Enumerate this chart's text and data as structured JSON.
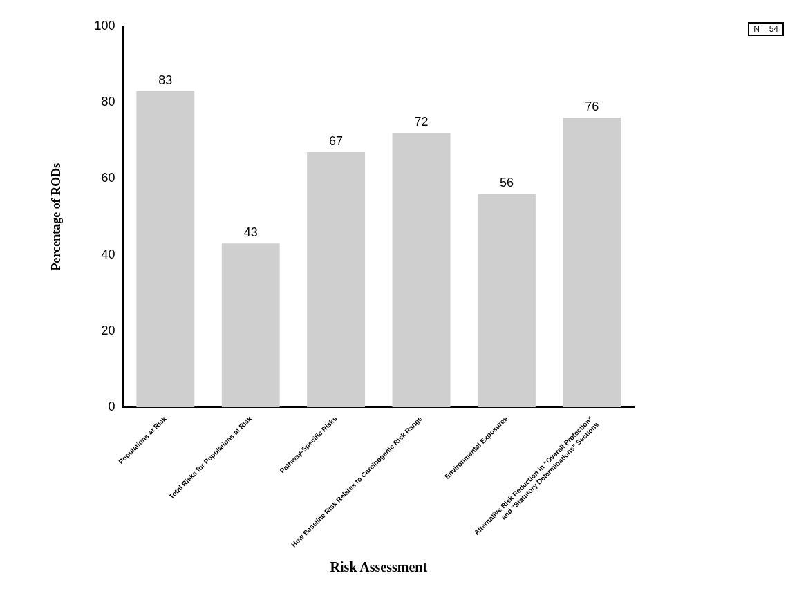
{
  "chart_data": {
    "type": "bar",
    "xlabel": "Risk Assessment",
    "ylabel": "Percentage of RODs",
    "categories": [
      "Populations at Risk",
      "Total Risks for Populations at Risk",
      "Pathway-Specific Risks",
      "How Baseline Risk Relates to Carcinogenic Risk Range",
      "Environmental Exposures",
      "Alternative Risk Reduction in “Overall Protection”\nand “Statutory Determinations” Sections"
    ],
    "values": [
      83,
      43,
      67,
      72,
      56,
      76
    ],
    "color": "#cfcfcf",
    "ylim": [
      0,
      100
    ],
    "yticks": [
      0,
      20,
      40,
      60,
      80,
      100
    ],
    "grid": false,
    "legend": false,
    "data_labels": true,
    "annotations": [
      "N = 54"
    ]
  }
}
